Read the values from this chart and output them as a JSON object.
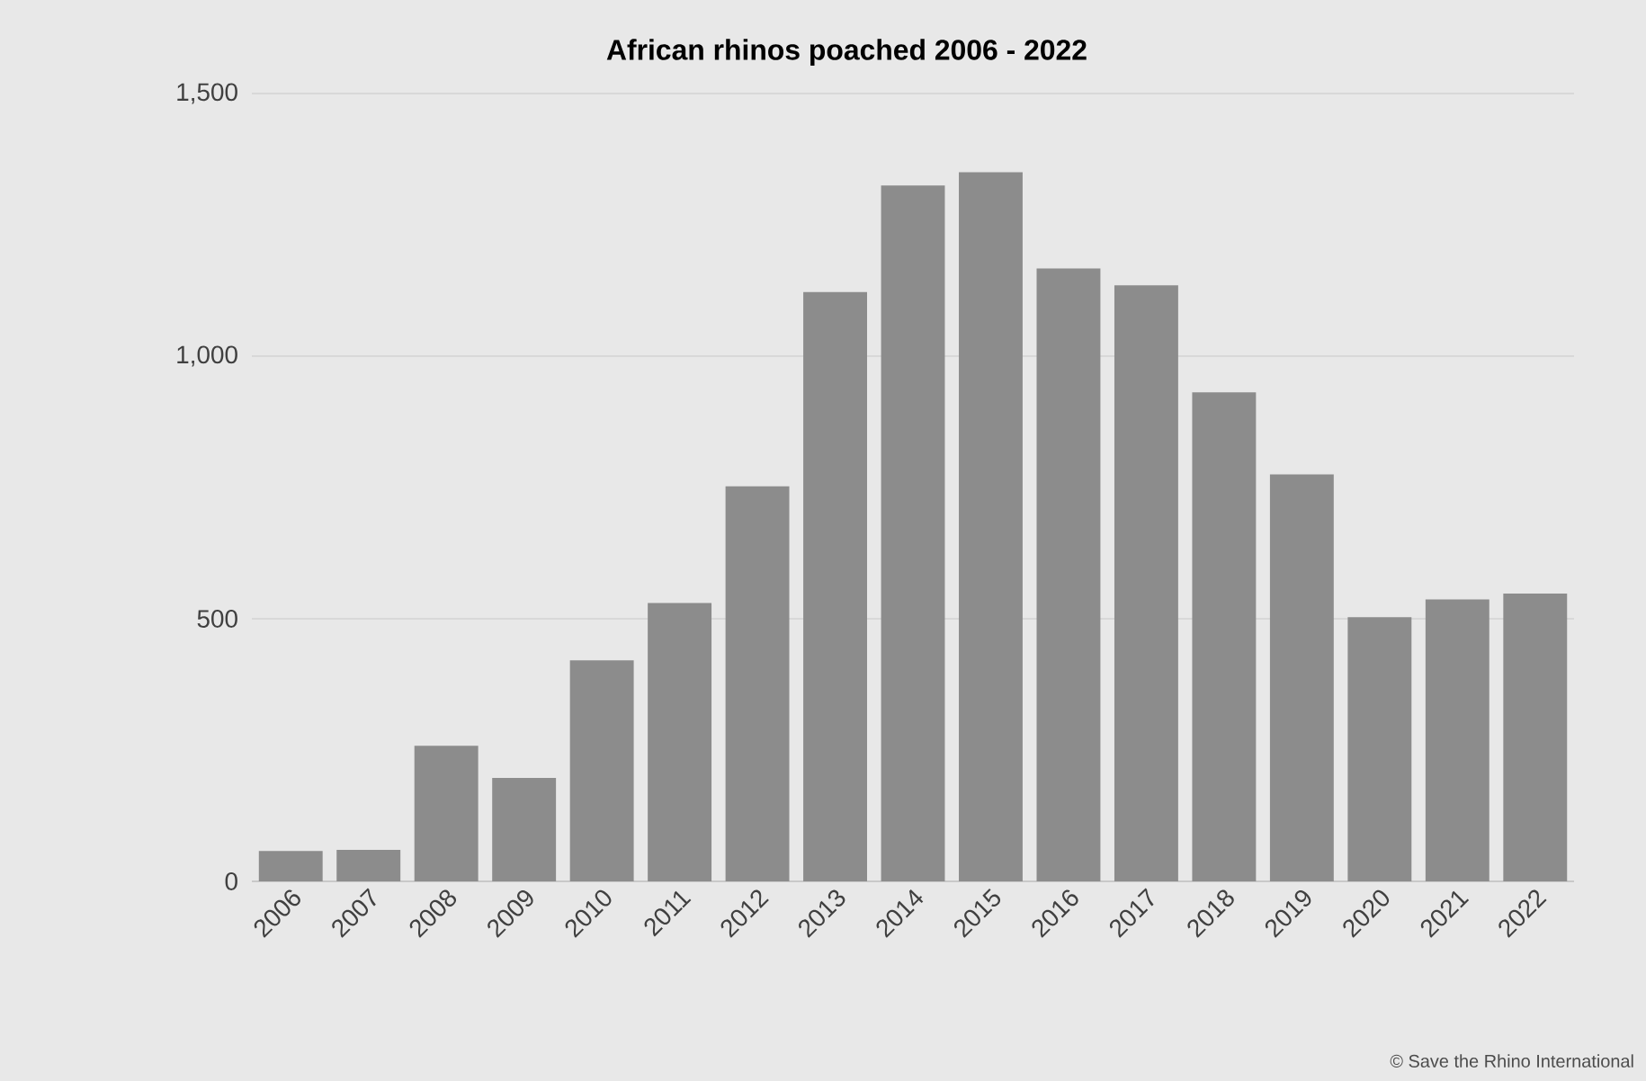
{
  "chart_data": {
    "type": "bar",
    "title": "African rhinos poached 2006 - 2022",
    "categories": [
      "2006",
      "2007",
      "2008",
      "2009",
      "2010",
      "2011",
      "2012",
      "2013",
      "2014",
      "2015",
      "2016",
      "2017",
      "2018",
      "2019",
      "2020",
      "2021",
      "2022"
    ],
    "values": [
      58,
      60,
      258,
      197,
      421,
      530,
      752,
      1122,
      1325,
      1350,
      1167,
      1135,
      931,
      775,
      503,
      537,
      548
    ],
    "color": "#8c8c8c",
    "ylim": [
      0,
      1500
    ],
    "yticks": [
      {
        "value": 0,
        "label": "0"
      },
      {
        "value": 500,
        "label": "500"
      },
      {
        "value": 1000,
        "label": "1,000"
      },
      {
        "value": 1500,
        "label": "1,500"
      }
    ],
    "grid": "y",
    "annotations": [
      "© Save the Rhino International"
    ]
  }
}
